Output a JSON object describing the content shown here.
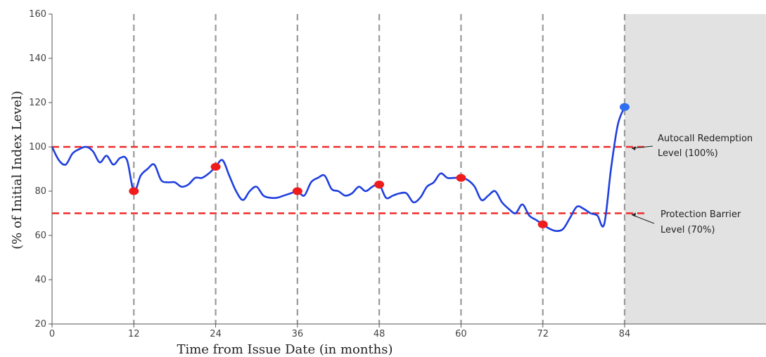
{
  "chart_data": {
    "type": "line",
    "xlabel": "Time from Issue Date (in months)",
    "ylabel": "(% of Initial Index Level)",
    "xlim": [
      0,
      84
    ],
    "ylim": [
      20,
      160
    ],
    "x_ticks": [
      0,
      12,
      24,
      36,
      48,
      60,
      72,
      84
    ],
    "y_ticks": [
      20,
      40,
      60,
      80,
      100,
      120,
      140,
      160
    ],
    "observation_dates": [
      12,
      24,
      36,
      48,
      60,
      72,
      84
    ],
    "shaded_region": "after month 84",
    "reference_lines": [
      {
        "label_line1": "Autocall Redemption",
        "label_line2": "Level (100%)",
        "value": 100
      },
      {
        "label_line1": "Protection Barrier",
        "label_line2": "Level (70%)",
        "value": 70
      }
    ],
    "series": [
      {
        "points": [
          [
            0,
            100
          ],
          [
            1,
            94
          ],
          [
            2,
            92
          ],
          [
            3,
            97
          ],
          [
            4,
            99
          ],
          [
            5,
            100
          ],
          [
            6,
            98
          ],
          [
            7,
            93
          ],
          [
            8,
            96
          ],
          [
            9,
            92
          ],
          [
            10,
            95
          ],
          [
            11,
            94
          ],
          [
            12,
            80
          ],
          [
            13,
            87
          ],
          [
            14,
            90
          ],
          [
            15,
            92
          ],
          [
            16,
            85
          ],
          [
            17,
            84
          ],
          [
            18,
            84
          ],
          [
            19,
            82
          ],
          [
            20,
            83
          ],
          [
            21,
            86
          ],
          [
            22,
            86
          ],
          [
            23,
            88
          ],
          [
            24,
            91
          ],
          [
            25,
            94
          ],
          [
            26,
            87
          ],
          [
            27,
            80
          ],
          [
            28,
            76
          ],
          [
            29,
            80
          ],
          [
            30,
            82
          ],
          [
            31,
            78
          ],
          [
            32,
            77
          ],
          [
            33,
            77
          ],
          [
            34,
            78
          ],
          [
            35,
            79
          ],
          [
            36,
            80
          ],
          [
            37,
            78
          ],
          [
            38,
            84
          ],
          [
            39,
            86
          ],
          [
            40,
            87
          ],
          [
            41,
            81
          ],
          [
            42,
            80
          ],
          [
            43,
            78
          ],
          [
            44,
            79
          ],
          [
            45,
            82
          ],
          [
            46,
            80
          ],
          [
            47,
            82
          ],
          [
            48,
            83
          ],
          [
            49,
            77
          ],
          [
            50,
            78
          ],
          [
            51,
            79
          ],
          [
            52,
            79
          ],
          [
            53,
            75
          ],
          [
            54,
            77
          ],
          [
            55,
            82
          ],
          [
            56,
            84
          ],
          [
            57,
            88
          ],
          [
            58,
            86
          ],
          [
            59,
            86
          ],
          [
            60,
            86
          ],
          [
            61,
            85
          ],
          [
            62,
            82
          ],
          [
            63,
            76
          ],
          [
            64,
            78
          ],
          [
            65,
            80
          ],
          [
            66,
            75
          ],
          [
            67,
            72
          ],
          [
            68,
            70
          ],
          [
            69,
            74
          ],
          [
            70,
            69
          ],
          [
            71,
            67
          ],
          [
            72,
            65
          ],
          [
            73,
            63
          ],
          [
            74,
            62
          ],
          [
            75,
            63
          ],
          [
            76,
            68
          ],
          [
            77,
            73
          ],
          [
            78,
            72
          ],
          [
            79,
            70
          ],
          [
            80,
            69
          ],
          [
            81,
            65
          ],
          [
            82,
            90
          ],
          [
            83,
            110
          ],
          [
            84,
            118
          ]
        ]
      }
    ],
    "markers": [
      {
        "x": 12,
        "y": 80,
        "color": "#ee1c1c"
      },
      {
        "x": 24,
        "y": 91,
        "color": "#ee1c1c"
      },
      {
        "x": 36,
        "y": 80,
        "color": "#ee1c1c"
      },
      {
        "x": 48,
        "y": 83,
        "color": "#ee1c1c"
      },
      {
        "x": 60,
        "y": 86,
        "color": "#ee1c1c"
      },
      {
        "x": 72,
        "y": 65,
        "color": "#ee1c1c"
      },
      {
        "x": 84,
        "y": 118,
        "color": "#2e6ef2"
      }
    ],
    "colors": {
      "line": "#1f3fe0",
      "reference": "#ef2b2b",
      "observation": "#9a9a9a",
      "shade": "#e2e2e2"
    }
  }
}
